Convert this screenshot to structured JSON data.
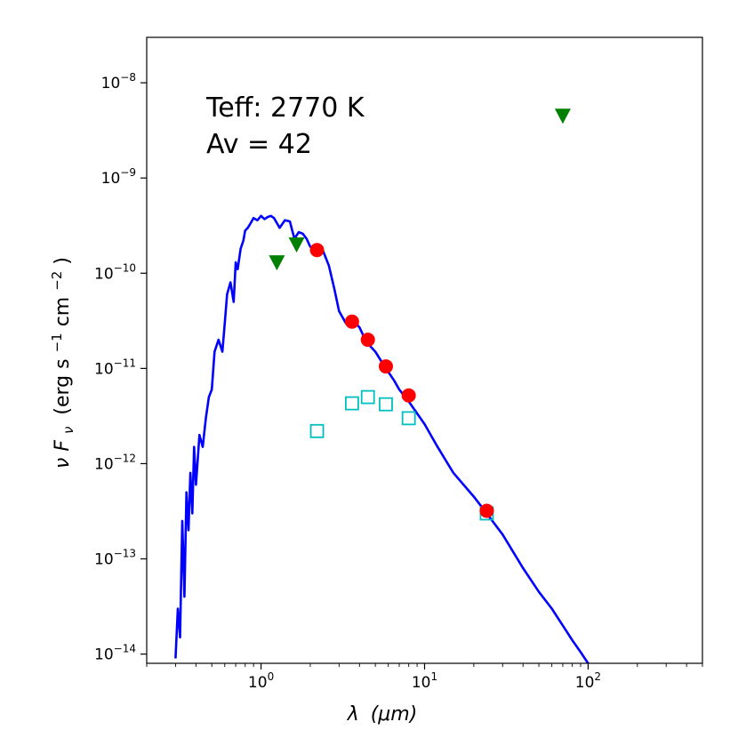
{
  "chart_data": {
    "type": "scatter",
    "title": "",
    "xlabel": {
      "symbol": "λ",
      "unit": "(μm)"
    },
    "ylabel": {
      "prefix": "ν F",
      "subscript": "ν",
      "unit_open": "(erg s",
      "sup1": "−1",
      "mid": "cm",
      "sup2": "−2",
      "unit_close": ")"
    },
    "x_scale": "log",
    "y_scale": "log",
    "xlim": [
      0.2,
      500
    ],
    "ylim": [
      8e-15,
      3e-08
    ],
    "x_ticks": [
      {
        "value": 1,
        "base": "10",
        "exp": "0"
      },
      {
        "value": 10,
        "base": "10",
        "exp": "1"
      },
      {
        "value": 100,
        "base": "10",
        "exp": "2"
      }
    ],
    "y_ticks": [
      {
        "value": 1e-14,
        "base": "10",
        "exp": "−14"
      },
      {
        "value": 1e-13,
        "base": "10",
        "exp": "−13"
      },
      {
        "value": 1e-12,
        "base": "10",
        "exp": "−12"
      },
      {
        "value": 1e-11,
        "base": "10",
        "exp": "−11"
      },
      {
        "value": 1e-10,
        "base": "10",
        "exp": "−10"
      },
      {
        "value": 1e-09,
        "base": "10",
        "exp": "−9"
      },
      {
        "value": 1e-08,
        "base": "10",
        "exp": "−8"
      }
    ],
    "annotations": [
      "Teff: 2770 K",
      "Av = 42"
    ],
    "series": [
      {
        "name": "model SED",
        "kind": "line",
        "color": "#0000ff",
        "x": [
          0.3,
          0.31,
          0.32,
          0.33,
          0.34,
          0.35,
          0.36,
          0.37,
          0.38,
          0.39,
          0.4,
          0.42,
          0.44,
          0.46,
          0.48,
          0.5,
          0.52,
          0.55,
          0.58,
          0.6,
          0.62,
          0.65,
          0.68,
          0.7,
          0.72,
          0.75,
          0.78,
          0.8,
          0.83,
          0.86,
          0.9,
          0.95,
          1.0,
          1.05,
          1.1,
          1.15,
          1.2,
          1.3,
          1.4,
          1.5,
          1.6,
          1.7,
          1.8,
          1.9,
          2.0,
          2.1,
          2.2,
          2.3,
          2.4,
          2.6,
          2.8,
          3.0,
          3.3,
          3.6,
          4.0,
          4.4,
          5.0,
          5.8,
          6.5,
          7.0,
          8.0,
          10,
          12,
          15,
          20,
          24,
          30,
          40,
          50,
          60,
          70,
          80,
          90,
          100
        ],
        "y": [
          9e-15,
          3e-14,
          1.5e-14,
          2.5e-13,
          4e-14,
          5e-13,
          2e-13,
          8e-13,
          3e-13,
          1.5e-12,
          6e-13,
          2e-12,
          1.5e-12,
          3e-12,
          5e-12,
          6e-12,
          1.5e-11,
          2e-11,
          1.5e-11,
          3e-11,
          6e-11,
          8e-11,
          5e-11,
          1.3e-10,
          1.1e-10,
          1.8e-10,
          2.2e-10,
          2.8e-10,
          3e-10,
          3.3e-10,
          3.8e-10,
          3.6e-10,
          4e-10,
          3.7e-10,
          3.9e-10,
          4e-10,
          3.8e-10,
          3e-10,
          3.6e-10,
          3.5e-10,
          2.3e-10,
          2.7e-10,
          2.6e-10,
          2.3e-10,
          1.9e-10,
          1.8e-10,
          1.7e-10,
          1.6e-10,
          1.7e-10,
          1.2e-10,
          7e-11,
          4e-11,
          3e-11,
          3.3e-11,
          2.7e-11,
          1.9e-11,
          1.5e-11,
          1e-11,
          7.5e-12,
          6e-12,
          4.5e-12,
          2.6e-12,
          1.5e-12,
          8e-13,
          4.5e-13,
          3e-13,
          1.8e-13,
          8e-14,
          4.5e-14,
          3e-14,
          2e-14,
          1.4e-14,
          1.05e-14,
          8e-15
        ]
      },
      {
        "name": "observed photometry",
        "kind": "circle",
        "color": "#ff0000",
        "x": [
          2.2,
          3.6,
          4.5,
          5.8,
          8.0,
          24
        ],
        "y": [
          1.75e-10,
          3.1e-11,
          2e-11,
          1.05e-11,
          5.2e-12,
          3.2e-13
        ]
      },
      {
        "name": "upper limits",
        "kind": "triangle-down",
        "color": "#008000",
        "x": [
          1.25,
          1.65,
          70
        ],
        "y": [
          1.3e-10,
          2e-10,
          4.5e-09
        ]
      },
      {
        "name": "open squares",
        "kind": "square-open",
        "color": "#00bfbf",
        "x": [
          2.2,
          3.6,
          4.5,
          5.8,
          8.0,
          24
        ],
        "y": [
          2.2e-12,
          4.3e-12,
          5e-12,
          4.2e-12,
          3e-12,
          3e-13
        ]
      }
    ]
  }
}
